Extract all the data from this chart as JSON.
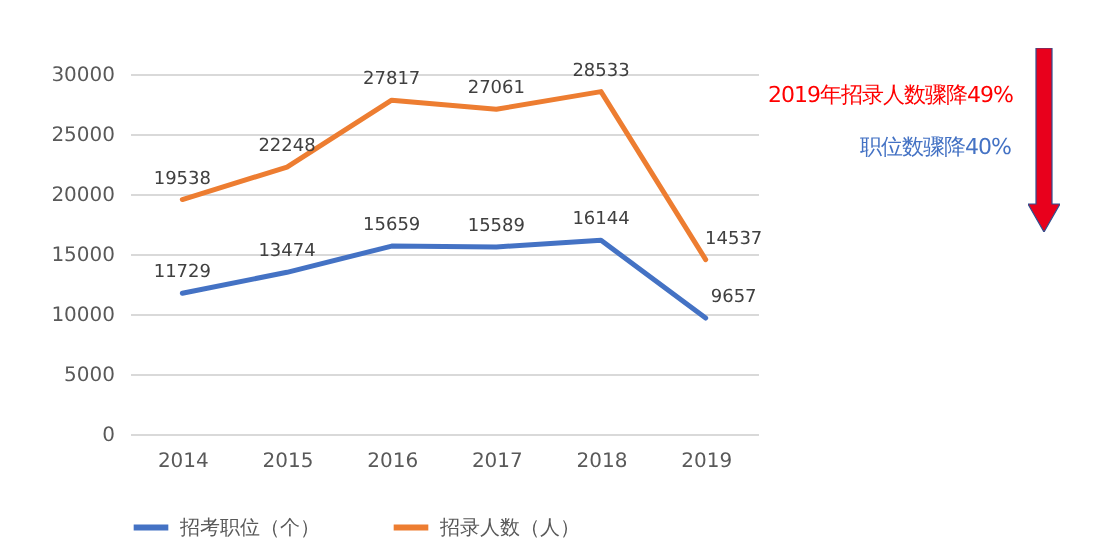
{
  "chart_data": {
    "type": "line",
    "categories": [
      "2014",
      "2015",
      "2016",
      "2017",
      "2018",
      "2019"
    ],
    "series": [
      {
        "name": "招考职位（个）",
        "color": "#4472c4",
        "values": [
          11729,
          13474,
          15659,
          15589,
          16144,
          9657
        ]
      },
      {
        "name": "招录人数（人）",
        "color": "#ed7d31",
        "values": [
          19538,
          22248,
          27817,
          27061,
          28533,
          14537
        ]
      }
    ],
    "ylim": [
      0,
      30000
    ],
    "yticks": [
      0,
      5000,
      10000,
      15000,
      20000,
      25000,
      30000
    ],
    "grid": "y",
    "legend": "bottom",
    "data_labels": true,
    "marker": "none",
    "line_style": "solid",
    "annotations": [
      "2019年招录人数骤降49%",
      "职位数骤降40%"
    ]
  }
}
